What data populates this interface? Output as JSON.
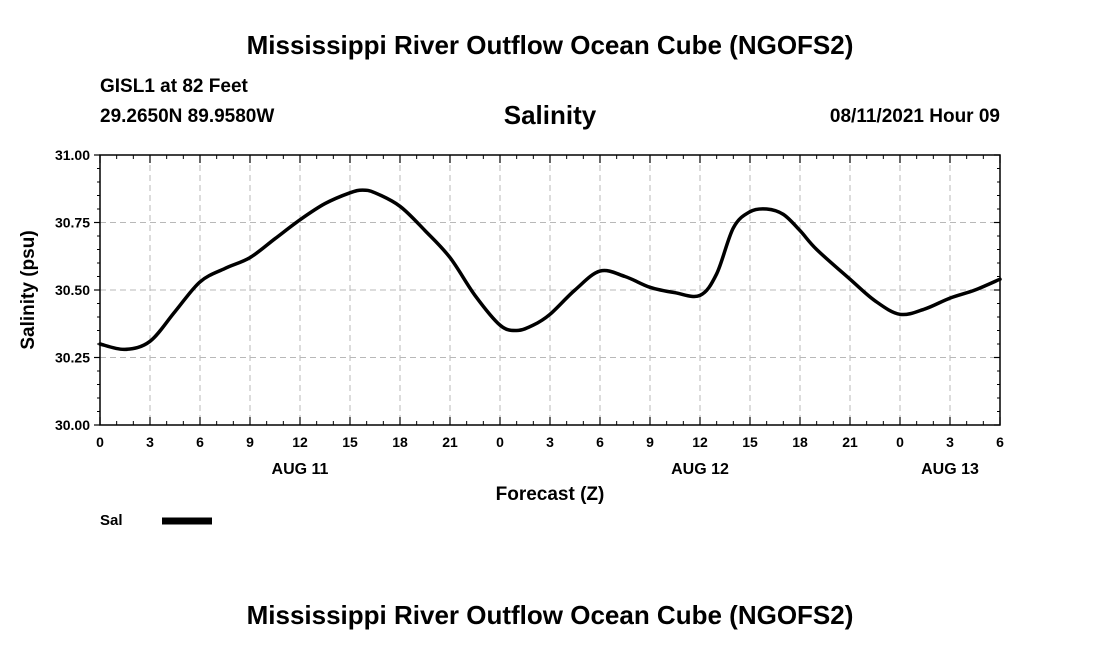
{
  "header": {
    "main_title": "Mississippi River Outflow Ocean Cube (NGOFS2)",
    "station": "GISL1 at 82 Feet",
    "coords": "29.2650N  89.9580W",
    "variable": "Salinity",
    "datetime": "08/11/2021 Hour 09"
  },
  "footer": {
    "title": "Mississippi River Outflow Ocean Cube (NGOFS2)"
  },
  "colors": {
    "line": "#000000",
    "grid": "#b8b8b8",
    "background": "#ffffff"
  },
  "chart_data": {
    "type": "line",
    "title": "Salinity",
    "xlabel": "Forecast (Z)",
    "ylabel": "Salinity (psu)",
    "xlim": [
      0,
      54
    ],
    "ylim": [
      30.0,
      31.0
    ],
    "grid": true,
    "x_ticks": [
      0,
      3,
      6,
      9,
      12,
      15,
      18,
      21,
      24,
      27,
      30,
      33,
      36,
      39,
      42,
      45,
      48,
      51,
      54
    ],
    "x_tick_labels": [
      "0",
      "3",
      "6",
      "9",
      "12",
      "15",
      "18",
      "21",
      "0",
      "3",
      "6",
      "9",
      "12",
      "15",
      "18",
      "21",
      "0",
      "3",
      "6"
    ],
    "y_ticks": [
      30.0,
      30.25,
      30.5,
      30.75,
      31.0
    ],
    "y_tick_labels": [
      "30.00",
      "30.25",
      "30.50",
      "30.75",
      "31.00"
    ],
    "date_labels": [
      {
        "x": 12,
        "label": "AUG 11"
      },
      {
        "x": 36,
        "label": "AUG 12"
      },
      {
        "x": 51,
        "label": "AUG 13"
      }
    ],
    "legend": {
      "position": "bottom-left",
      "entries": [
        "Sal"
      ]
    },
    "series": [
      {
        "name": "Sal",
        "x": [
          0,
          1.5,
          3,
          4.5,
          6,
          7.5,
          9,
          10.5,
          12,
          13.5,
          15,
          15.75,
          16.5,
          18,
          19.5,
          21,
          22.5,
          24,
          25,
          26,
          27,
          28.5,
          30,
          31.5,
          33,
          34.5,
          36,
          37,
          38,
          39,
          40,
          41,
          42,
          43,
          45,
          46.5,
          48,
          49.5,
          51,
          52.5,
          54
        ],
        "y": [
          30.3,
          30.28,
          30.31,
          30.42,
          30.53,
          30.58,
          30.62,
          30.69,
          30.76,
          30.82,
          30.86,
          30.87,
          30.86,
          30.81,
          30.72,
          30.62,
          30.48,
          30.37,
          30.35,
          30.37,
          30.41,
          30.5,
          30.57,
          30.55,
          30.51,
          30.49,
          30.48,
          30.56,
          30.73,
          30.79,
          30.8,
          30.78,
          30.72,
          30.65,
          30.54,
          30.46,
          30.41,
          30.43,
          30.47,
          30.5,
          30.54
        ]
      }
    ]
  }
}
